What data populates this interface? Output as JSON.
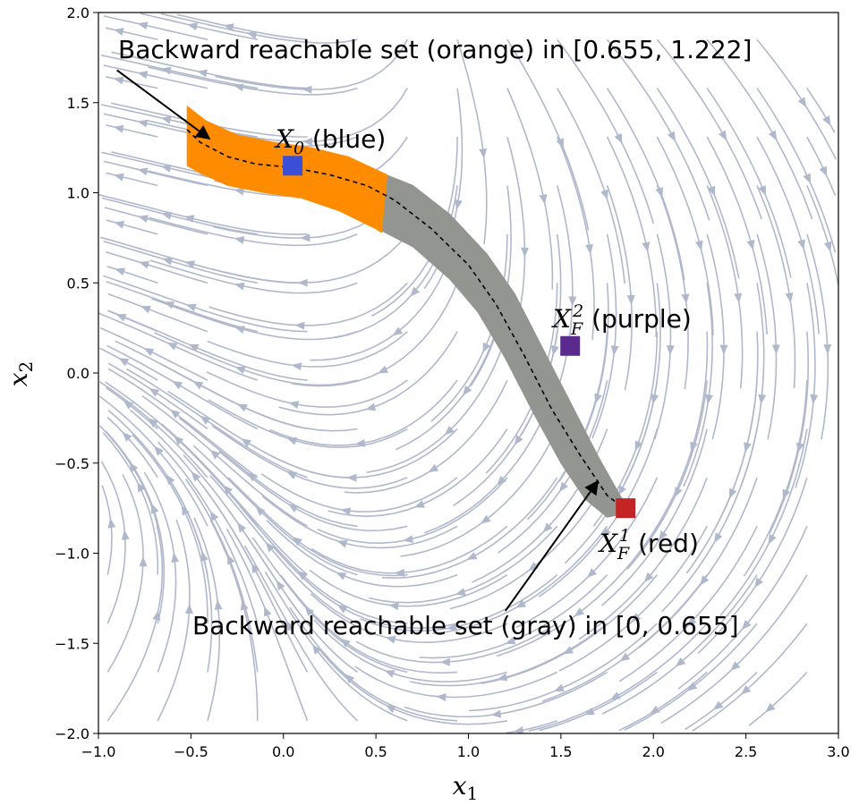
{
  "chart_data": {
    "type": "streamplot",
    "xlim": [
      -1.0,
      3.0
    ],
    "ylim": [
      -2.0,
      2.0
    ],
    "xticks": [
      -1.0,
      -0.5,
      0.0,
      0.5,
      1.0,
      1.5,
      2.0,
      2.5,
      3.0
    ],
    "yticks": [
      -2.0,
      -1.5,
      -1.0,
      -0.5,
      0.0,
      0.5,
      1.0,
      1.5,
      2.0
    ],
    "xtick_labels": [
      "−1.0",
      "−0.5",
      "0.0",
      "0.5",
      "1.0",
      "1.5",
      "2.0",
      "2.5",
      "3.0"
    ],
    "ytick_labels": [
      "−2.0",
      "−1.5",
      "−1.0",
      "−0.5",
      "0.0",
      "0.5",
      "1.0",
      "1.5",
      "2.0"
    ],
    "xlabel": "x",
    "xlabel_sub": "1",
    "ylabel": "x",
    "ylabel_sub": "2",
    "grid": false,
    "streamline_color": "#b0b8cc",
    "trajectory": [
      [
        -0.52,
        1.35
      ],
      [
        -0.45,
        1.28
      ],
      [
        -0.3,
        1.2
      ],
      [
        -0.15,
        1.16
      ],
      [
        0.05,
        1.14
      ],
      [
        0.25,
        1.1
      ],
      [
        0.45,
        1.04
      ],
      [
        0.6,
        0.96
      ],
      [
        0.8,
        0.8
      ],
      [
        1.0,
        0.6
      ],
      [
        1.15,
        0.38
      ],
      [
        1.3,
        0.1
      ],
      [
        1.45,
        -0.2
      ],
      [
        1.6,
        -0.45
      ],
      [
        1.75,
        -0.68
      ],
      [
        1.84,
        -0.75
      ]
    ],
    "regions": [
      {
        "name": "Backward reachable set (orange)",
        "color": "#ff8c00",
        "t_range": [
          0.655,
          1.222
        ],
        "upper": [
          [
            -0.52,
            1.48
          ],
          [
            -0.42,
            1.4
          ],
          [
            -0.25,
            1.32
          ],
          [
            -0.05,
            1.28
          ],
          [
            0.15,
            1.25
          ],
          [
            0.35,
            1.2
          ],
          [
            0.56,
            1.1
          ]
        ],
        "lower": [
          [
            -0.52,
            1.15
          ],
          [
            -0.45,
            1.11
          ],
          [
            -0.3,
            1.04
          ],
          [
            -0.1,
            1.0
          ],
          [
            0.1,
            0.97
          ],
          [
            0.3,
            0.9
          ],
          [
            0.5,
            0.8
          ],
          [
            0.53,
            0.78
          ]
        ]
      },
      {
        "name": "Backward reachable set (gray)",
        "color": "#939590",
        "t_range": [
          0,
          0.655
        ],
        "upper": [
          [
            0.53,
            1.11
          ],
          [
            0.7,
            1.04
          ],
          [
            0.9,
            0.88
          ],
          [
            1.1,
            0.66
          ],
          [
            1.25,
            0.44
          ],
          [
            1.4,
            0.14
          ],
          [
            1.55,
            -0.16
          ],
          [
            1.7,
            -0.46
          ],
          [
            1.82,
            -0.68
          ],
          [
            1.86,
            -0.74
          ]
        ],
        "lower": [
          [
            0.51,
            0.8
          ],
          [
            0.7,
            0.7
          ],
          [
            0.9,
            0.52
          ],
          [
            1.05,
            0.34
          ],
          [
            1.2,
            0.08
          ],
          [
            1.35,
            -0.22
          ],
          [
            1.5,
            -0.5
          ],
          [
            1.63,
            -0.7
          ],
          [
            1.75,
            -0.8
          ],
          [
            1.84,
            -0.78
          ]
        ]
      }
    ],
    "markers": [
      {
        "label": "X_0 (blue)",
        "x": 0.05,
        "y": 1.15,
        "color": "#3a4fd6"
      },
      {
        "label": "X_F^2 (purple)",
        "x": 1.55,
        "y": 0.15,
        "color": "#5b2a8e"
      },
      {
        "label": "X_F^1 (red)",
        "x": 1.85,
        "y": -0.75,
        "color": "#c42424"
      }
    ],
    "annotations": [
      {
        "text": "Backward reachable set (orange) in [0.655, 1.222]",
        "text_x": -0.9,
        "text_y": 1.72,
        "arrow_from": [
          -0.9,
          1.68
        ],
        "arrow_to": [
          -0.4,
          1.3
        ]
      },
      {
        "text": "Backward reachable set (gray) in [0, 0.655]",
        "text_x": -0.5,
        "text_y": -1.42,
        "arrow_from": [
          1.2,
          -1.32
        ],
        "arrow_to": [
          1.7,
          -0.6
        ]
      }
    ]
  },
  "labels": {
    "x0_main": "X",
    "x0_sub": "0",
    "x0_rest": " (blue)",
    "xf2_main": "X",
    "xf2_sub": "F",
    "xf2_sup": "2",
    "xf2_rest": " (purple)",
    "xf1_main": "X",
    "xf1_sub": "F",
    "xf1_sup": "1",
    "xf1_rest": " (red)",
    "orange_text": "Backward reachable set (orange) in [0.655, 1.222]",
    "gray_text": "Backward reachable set (gray) in [0, 0.655]"
  }
}
